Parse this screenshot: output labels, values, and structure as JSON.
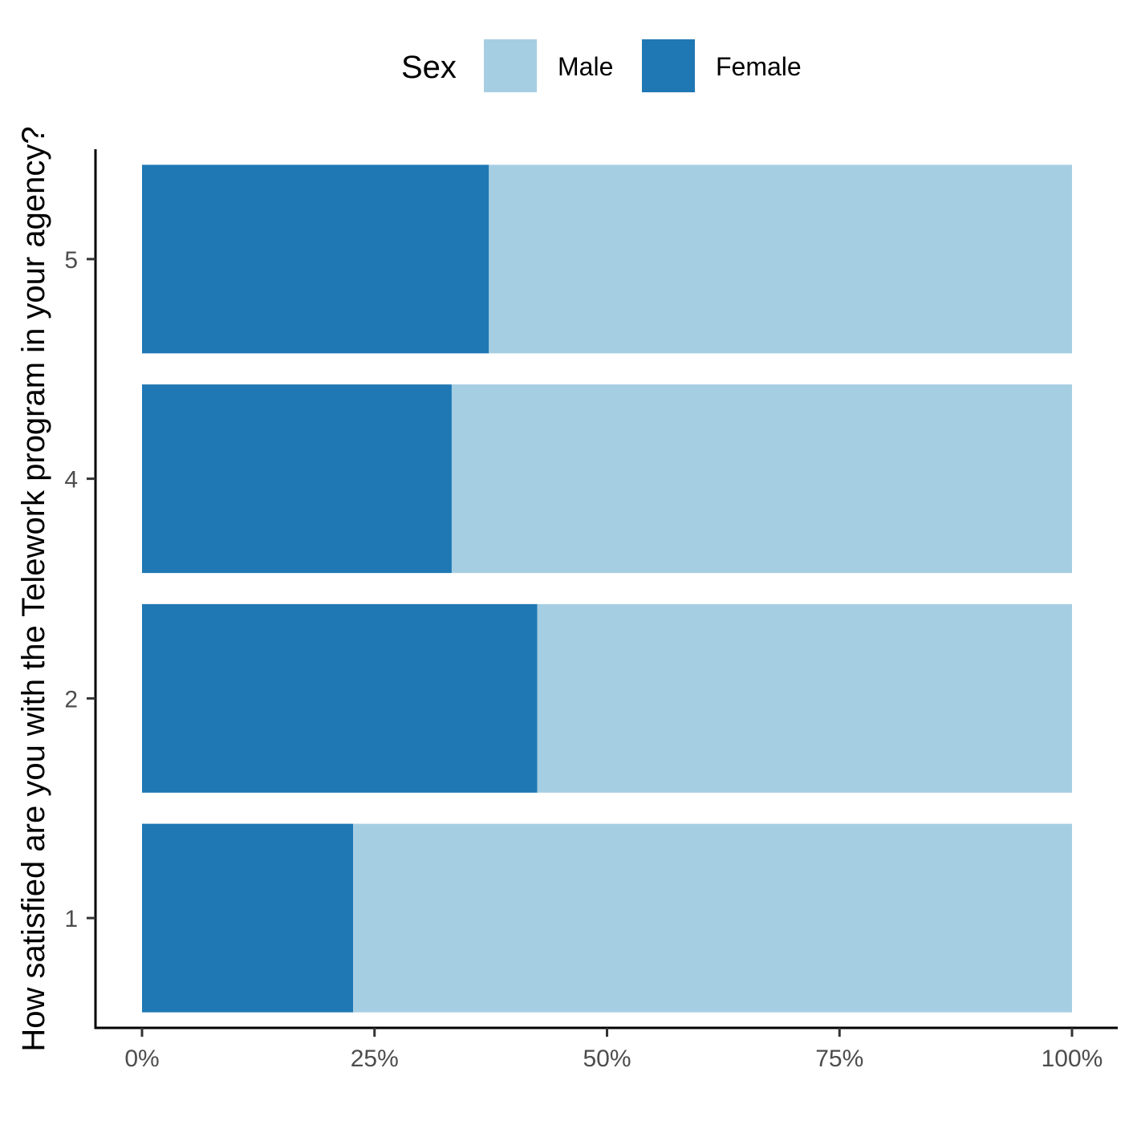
{
  "chart_data": {
    "type": "bar",
    "orientation": "horizontal",
    "stacked": true,
    "normalized_percent": true,
    "ylabel": "How satisfied are you with the Telework program in your agency?",
    "xlabel": "",
    "categories": [
      "1",
      "2",
      "4",
      "5"
    ],
    "x_ticks": [
      "0%",
      "25%",
      "50%",
      "75%",
      "100%"
    ],
    "xlim": [
      0,
      1
    ],
    "legend": {
      "title": "Sex",
      "position": "top",
      "entries": [
        "Male",
        "Female"
      ]
    },
    "series": [
      {
        "name": "Female",
        "color": "#1f78b4",
        "values": [
          0.227,
          0.425,
          0.333,
          0.373
        ]
      },
      {
        "name": "Male",
        "color": "#a6cee3",
        "values": [
          0.773,
          0.575,
          0.667,
          0.627
        ]
      }
    ],
    "grid": false
  }
}
